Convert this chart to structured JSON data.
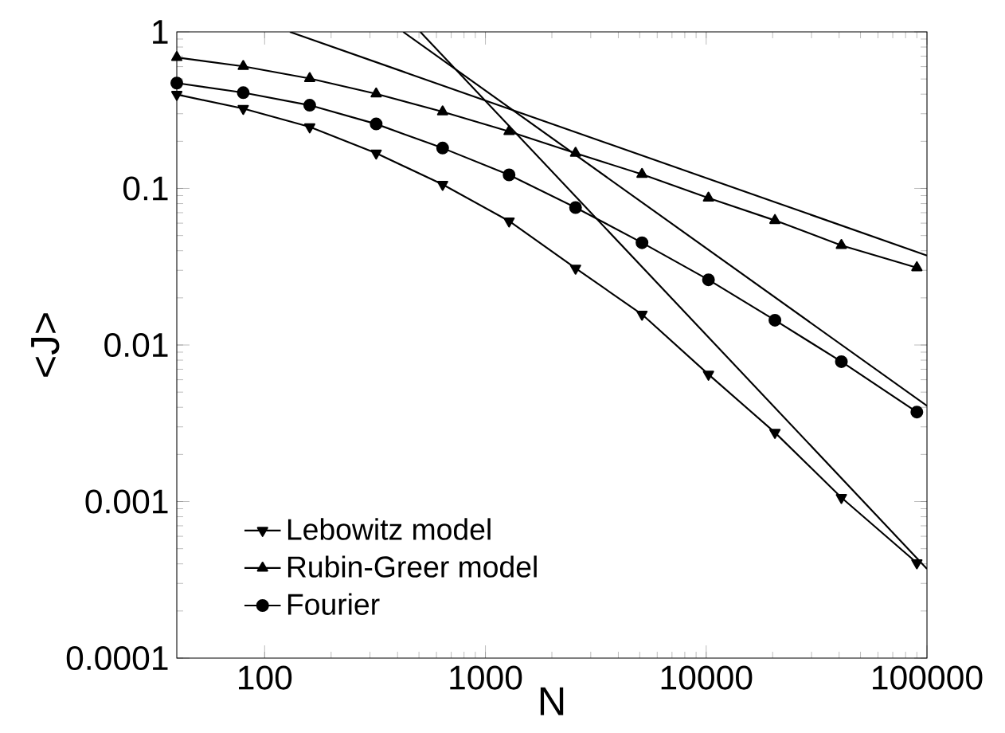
{
  "chart_data": {
    "type": "line",
    "xlabel": "N",
    "ylabel": "<J>",
    "log": "xy",
    "xlim": [
      40,
      100000
    ],
    "ylim": [
      0.0001,
      1
    ],
    "xticks": [
      100,
      1000,
      10000,
      100000
    ],
    "yticks": [
      0.0001,
      0.001,
      0.01,
      0.1,
      1
    ],
    "grid": false,
    "legend": "bottom left",
    "line_style": "solid",
    "x": [
      40,
      80,
      160,
      320,
      640,
      1280,
      2560,
      5120,
      10240,
      20480,
      40960,
      90000
    ],
    "series": [
      {
        "name": "Lebowitz model",
        "color": "#000000",
        "marker": "triangle-down",
        "values": [
          0.398,
          0.324,
          0.247,
          0.168,
          0.106,
          0.0619,
          0.0309,
          0.0157,
          0.00649,
          0.00276,
          0.00106,
          0.000406
        ]
      },
      {
        "name": "Rubin-Greer model",
        "color": "#000000",
        "marker": "triangle",
        "values": [
          0.687,
          0.602,
          0.504,
          0.402,
          0.309,
          0.231,
          0.168,
          0.123,
          0.0869,
          0.0625,
          0.0433,
          0.0312
        ]
      },
      {
        "name": "Fourier",
        "color": "#000000",
        "marker": "circle",
        "values": [
          0.471,
          0.409,
          0.34,
          0.258,
          0.181,
          0.122,
          0.0755,
          0.045,
          0.0261,
          0.0144,
          0.00783,
          0.00373
        ]
      },
      {
        "color": "#000000",
        "marker": "none",
        "x": [
          507,
          100000
        ],
        "values": [
          1,
          0.000372
        ]
      },
      {
        "color": "#000000",
        "marker": "none",
        "x": [
          424,
          100000
        ],
        "values": [
          1,
          0.00409
        ]
      },
      {
        "color": "#000000",
        "marker": "none",
        "x": [
          130,
          100000
        ],
        "values": [
          1,
          0.0373
        ]
      }
    ]
  }
}
